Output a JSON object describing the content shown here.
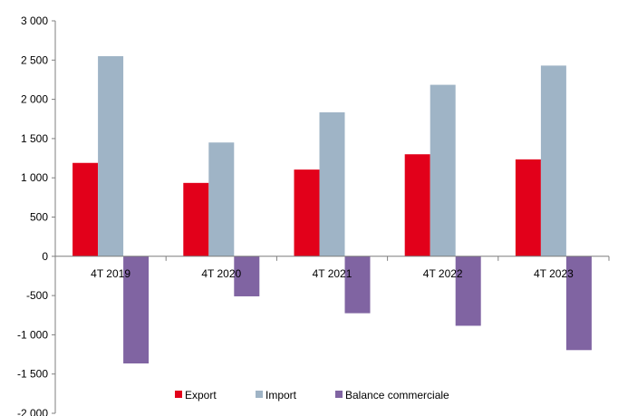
{
  "chart_data": {
    "type": "bar",
    "categories": [
      "4T 2019",
      "4T 2020",
      "4T 2021",
      "4T 2022",
      "4T 2023"
    ],
    "series": [
      {
        "name": "Export",
        "color": "#e2001a",
        "values": [
          1190,
          935,
          1105,
          1300,
          1235
        ]
      },
      {
        "name": "Import",
        "color": "#9fb4c6",
        "values": [
          2550,
          1450,
          1835,
          2185,
          2430
        ]
      },
      {
        "name": "Balance commerciale",
        "color": "#8064a2",
        "values": [
          -1365,
          -510,
          -725,
          -885,
          -1195
        ]
      }
    ],
    "ylim": [
      -2000,
      3000
    ],
    "yticks": [
      3000,
      2500,
      2000,
      1500,
      1000,
      500,
      0,
      -500,
      -1000,
      -1500,
      -2000
    ],
    "ytick_labels": [
      "3 000",
      "2 500",
      "2 000",
      "1 500",
      "1 000",
      "500",
      "0",
      "-500",
      "-1 000",
      "-1 500",
      "-2 000"
    ],
    "grid": false,
    "legend_position": "bottom"
  }
}
